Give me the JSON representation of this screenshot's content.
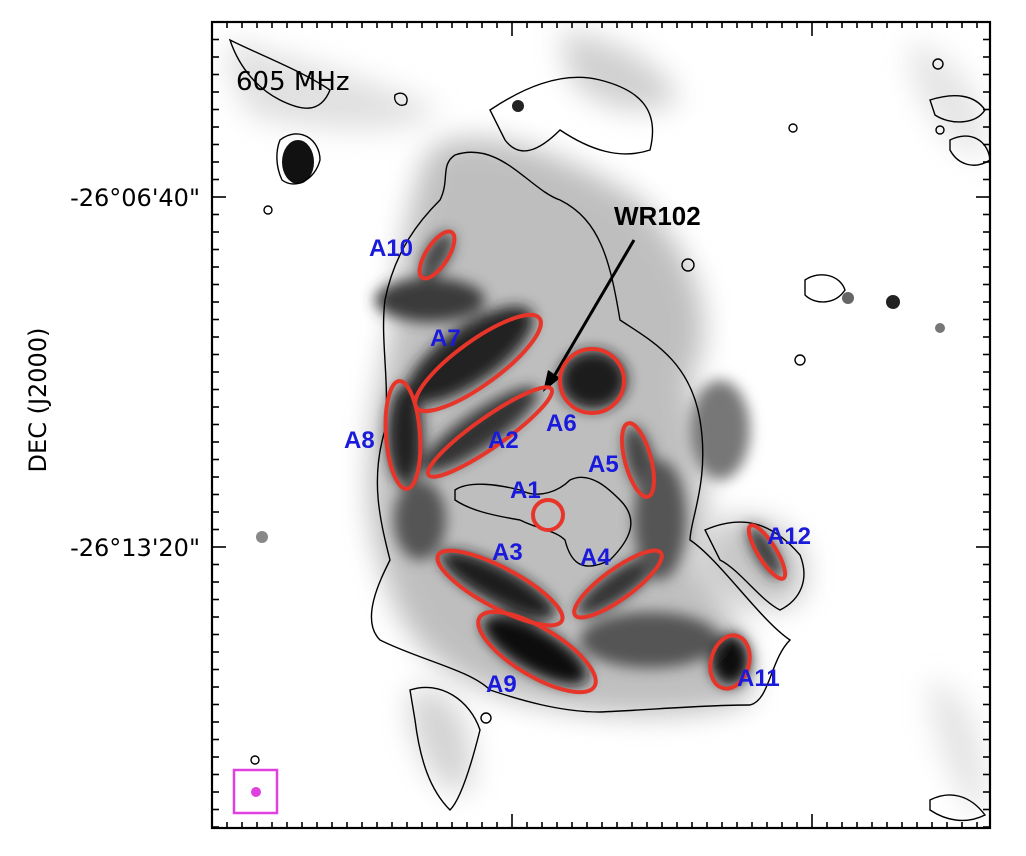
{
  "frequency_label": "605 MHz",
  "axis": {
    "y_label": "DEC (J2000)",
    "y_ticks": [
      "-26°06'40\"",
      "-26°13'20\""
    ]
  },
  "star_label": "WR102",
  "regions": [
    "A1",
    "A2",
    "A3",
    "A4",
    "A5",
    "A6",
    "A7",
    "A8",
    "A9",
    "A10",
    "A11",
    "A12"
  ],
  "colors": {
    "region_outline": "#e8352a",
    "region_label": "#1a1adc",
    "contour": "#000000",
    "beam_box": "#e040e0",
    "beam_dot": "#e040e0"
  },
  "beam_marker": "beam-ellipse-icon"
}
